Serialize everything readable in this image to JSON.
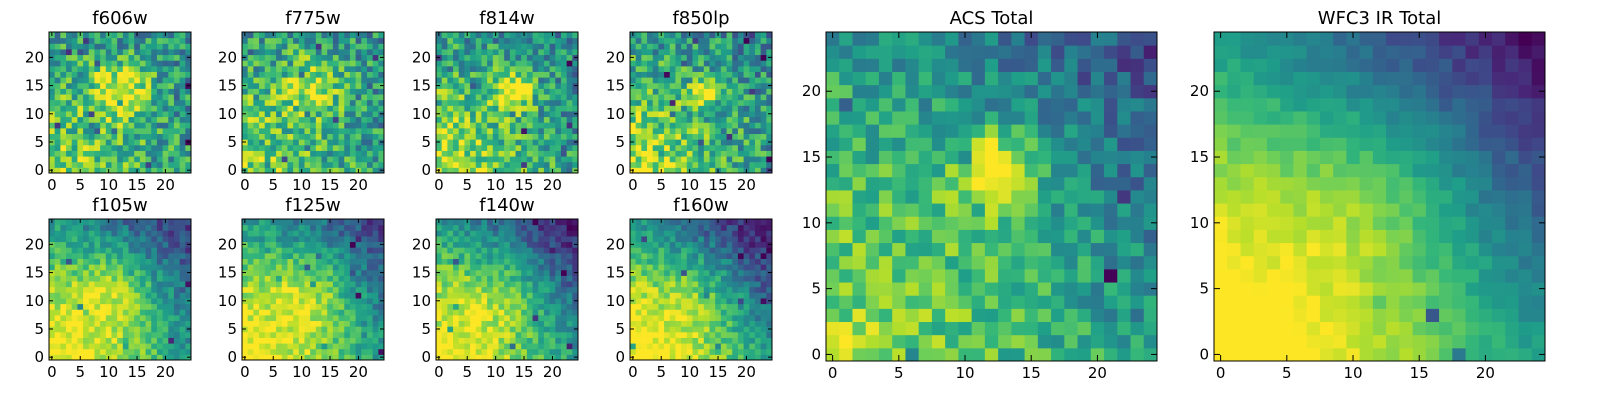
{
  "figure": {
    "background": "#ffffff"
  },
  "chart_data": [
    {
      "type": "heatmap",
      "title": "f606w",
      "xticks": [
        0,
        5,
        10,
        15,
        20
      ],
      "yticks": [
        0,
        5,
        10,
        15,
        20
      ],
      "xlim": [
        0,
        25
      ],
      "ylim": [
        0,
        25
      ],
      "grid": false,
      "colormap": "viridis",
      "features": {
        "seed": 11,
        "noise": 0.42,
        "hotspots": [
          {
            "x": 12,
            "y": 14,
            "s": 3.5,
            "a": 0.45
          }
        ],
        "lowCorner": 0.05,
        "bottomBright": 0.35
      }
    },
    {
      "type": "heatmap",
      "title": "f775w",
      "xticks": [
        0,
        5,
        10,
        15,
        20
      ],
      "yticks": [
        0,
        5,
        10,
        15,
        20
      ],
      "xlim": [
        0,
        25
      ],
      "ylim": [
        0,
        25
      ],
      "grid": false,
      "colormap": "viridis",
      "features": {
        "seed": 23,
        "noise": 0.42,
        "hotspots": [
          {
            "x": 12,
            "y": 15,
            "s": 3.5,
            "a": 0.35
          }
        ],
        "lowCorner": 0.05,
        "bottomBright": 0.35
      }
    },
    {
      "type": "heatmap",
      "title": "f814w",
      "xticks": [
        0,
        5,
        10,
        15,
        20
      ],
      "yticks": [
        0,
        5,
        10,
        15,
        20
      ],
      "xlim": [
        0,
        25
      ],
      "ylim": [
        0,
        25
      ],
      "grid": false,
      "colormap": "viridis",
      "features": {
        "seed": 37,
        "noise": 0.4,
        "hotspots": [
          {
            "x": 13,
            "y": 14,
            "s": 2.5,
            "a": 0.5
          }
        ],
        "lowCorner": 0.1,
        "bottomBright": 0.45
      }
    },
    {
      "type": "heatmap",
      "title": "f850lp",
      "xticks": [
        0,
        5,
        10,
        15,
        20
      ],
      "yticks": [
        0,
        5,
        10,
        15,
        20
      ],
      "xlim": [
        0,
        25
      ],
      "ylim": [
        0,
        25
      ],
      "grid": false,
      "colormap": "viridis",
      "features": {
        "seed": 41,
        "noise": 0.42,
        "hotspots": [
          {
            "x": 12.5,
            "y": 14,
            "s": 1.6,
            "a": 0.55
          }
        ],
        "lowCorner": 0.1,
        "bottomBright": 0.45
      }
    },
    {
      "type": "heatmap",
      "title": "f105w",
      "xticks": [
        0,
        5,
        10,
        15,
        20
      ],
      "yticks": [
        0,
        5,
        10,
        15,
        20
      ],
      "xlim": [
        0,
        25
      ],
      "ylim": [
        0,
        25
      ],
      "grid": false,
      "colormap": "viridis",
      "features": {
        "seed": 53,
        "noise": 0.22,
        "hotspots": [
          {
            "x": 11,
            "y": 11,
            "s": 6,
            "a": 0.3
          }
        ],
        "lowCorner": 0.45,
        "bottomBright": 0.55
      }
    },
    {
      "type": "heatmap",
      "title": "f125w",
      "xticks": [
        0,
        5,
        10,
        15,
        20
      ],
      "yticks": [
        0,
        5,
        10,
        15,
        20
      ],
      "xlim": [
        0,
        25
      ],
      "ylim": [
        0,
        25
      ],
      "grid": false,
      "colormap": "viridis",
      "features": {
        "seed": 67,
        "noise": 0.22,
        "hotspots": [
          {
            "x": 11,
            "y": 11,
            "s": 6,
            "a": 0.3
          }
        ],
        "lowCorner": 0.4,
        "bottomBright": 0.55
      }
    },
    {
      "type": "heatmap",
      "title": "f140w",
      "xticks": [
        0,
        5,
        10,
        15,
        20
      ],
      "yticks": [
        0,
        5,
        10,
        15,
        20
      ],
      "xlim": [
        0,
        25
      ],
      "ylim": [
        0,
        25
      ],
      "grid": false,
      "colormap": "viridis",
      "features": {
        "seed": 79,
        "noise": 0.22,
        "hotspots": [
          {
            "x": 11,
            "y": 11,
            "s": 6,
            "a": 0.22
          }
        ],
        "lowCorner": 0.55,
        "bottomBright": 0.6
      }
    },
    {
      "type": "heatmap",
      "title": "f160w",
      "xticks": [
        0,
        5,
        10,
        15,
        20
      ],
      "yticks": [
        0,
        5,
        10,
        15,
        20
      ],
      "xlim": [
        0,
        25
      ],
      "ylim": [
        0,
        25
      ],
      "grid": false,
      "colormap": "viridis",
      "features": {
        "seed": 83,
        "noise": 0.22,
        "hotspots": [
          {
            "x": 11,
            "y": 11,
            "s": 6,
            "a": 0.2
          }
        ],
        "lowCorner": 0.6,
        "bottomBright": 0.65
      }
    },
    {
      "type": "heatmap",
      "title": "ACS Total",
      "xticks": [
        0,
        5,
        10,
        15,
        20
      ],
      "yticks": [
        0,
        5,
        10,
        15,
        20
      ],
      "xlim": [
        0,
        25
      ],
      "ylim": [
        0,
        25
      ],
      "grid": false,
      "colormap": "viridis",
      "features": {
        "seed": 97,
        "noise": 0.28,
        "hotspots": [
          {
            "x": 12.5,
            "y": 14,
            "s": 1.8,
            "a": 0.5
          },
          {
            "x": 12,
            "y": 12,
            "s": 5,
            "a": 0.15
          }
        ],
        "lowCorner": 0.35,
        "bottomBright": 0.35
      }
    },
    {
      "type": "heatmap",
      "title": "WFC3 IR Total",
      "xticks": [
        0,
        5,
        10,
        15,
        20
      ],
      "yticks": [
        0,
        5,
        10,
        15,
        20
      ],
      "xlim": [
        0,
        25
      ],
      "ylim": [
        0,
        25
      ],
      "grid": false,
      "colormap": "viridis",
      "features": {
        "seed": 101,
        "noise": 0.1,
        "hotspots": [
          {
            "x": 11,
            "y": 11,
            "s": 6,
            "a": 0.2
          }
        ],
        "lowCorner": 0.6,
        "bottomBright": 0.7
      }
    }
  ]
}
